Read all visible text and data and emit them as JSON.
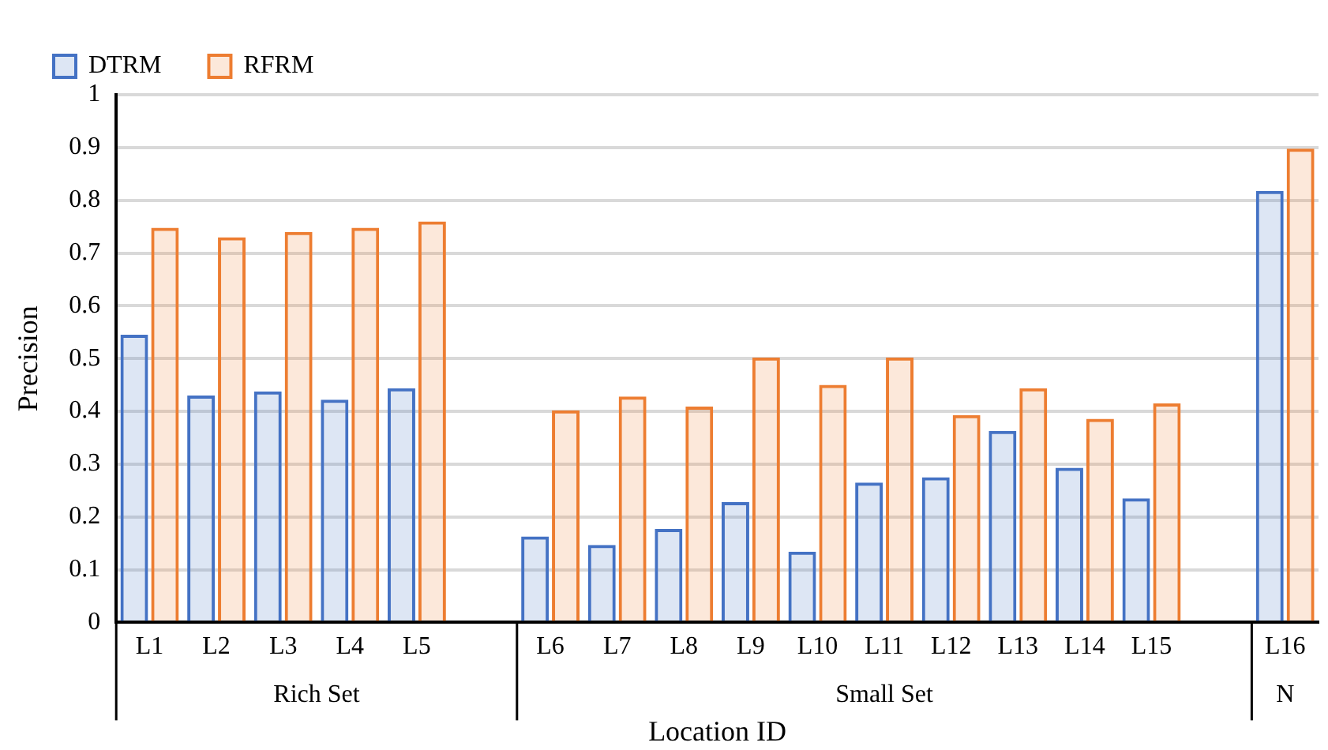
{
  "chart_data": {
    "type": "bar",
    "xlabel": "Location ID",
    "ylabel": "Precision",
    "categories": [
      "L1",
      "L2",
      "L3",
      "L4",
      "L5",
      null,
      "L6",
      "L7",
      "L8",
      "L9",
      "L10",
      "L11",
      "L12",
      "L13",
      "L14",
      "L15",
      null,
      "L16"
    ],
    "series": [
      {
        "name": "DTRM",
        "color": "#4472c4",
        "values": [
          0.545,
          0.43,
          0.438,
          0.422,
          0.444,
          null,
          0.163,
          0.147,
          0.177,
          0.228,
          0.134,
          0.265,
          0.275,
          0.363,
          0.293,
          0.235,
          null,
          0.818
        ]
      },
      {
        "name": "RFRM",
        "color": "#ed7d31",
        "values": [
          0.748,
          0.73,
          0.74,
          0.748,
          0.76,
          null,
          0.402,
          0.428,
          0.409,
          0.502,
          0.45,
          0.502,
          0.393,
          0.444,
          0.386,
          0.415,
          null,
          0.898
        ]
      }
    ],
    "annotations": [
      "Rich Set",
      "Small Set",
      "N"
    ],
    "ylim": [
      0,
      1
    ],
    "yticks": [
      0,
      0.1,
      0.2,
      0.3,
      0.4,
      0.5,
      0.6,
      0.7,
      0.8,
      0.9,
      1
    ],
    "grid": "y",
    "legend": "top left"
  }
}
